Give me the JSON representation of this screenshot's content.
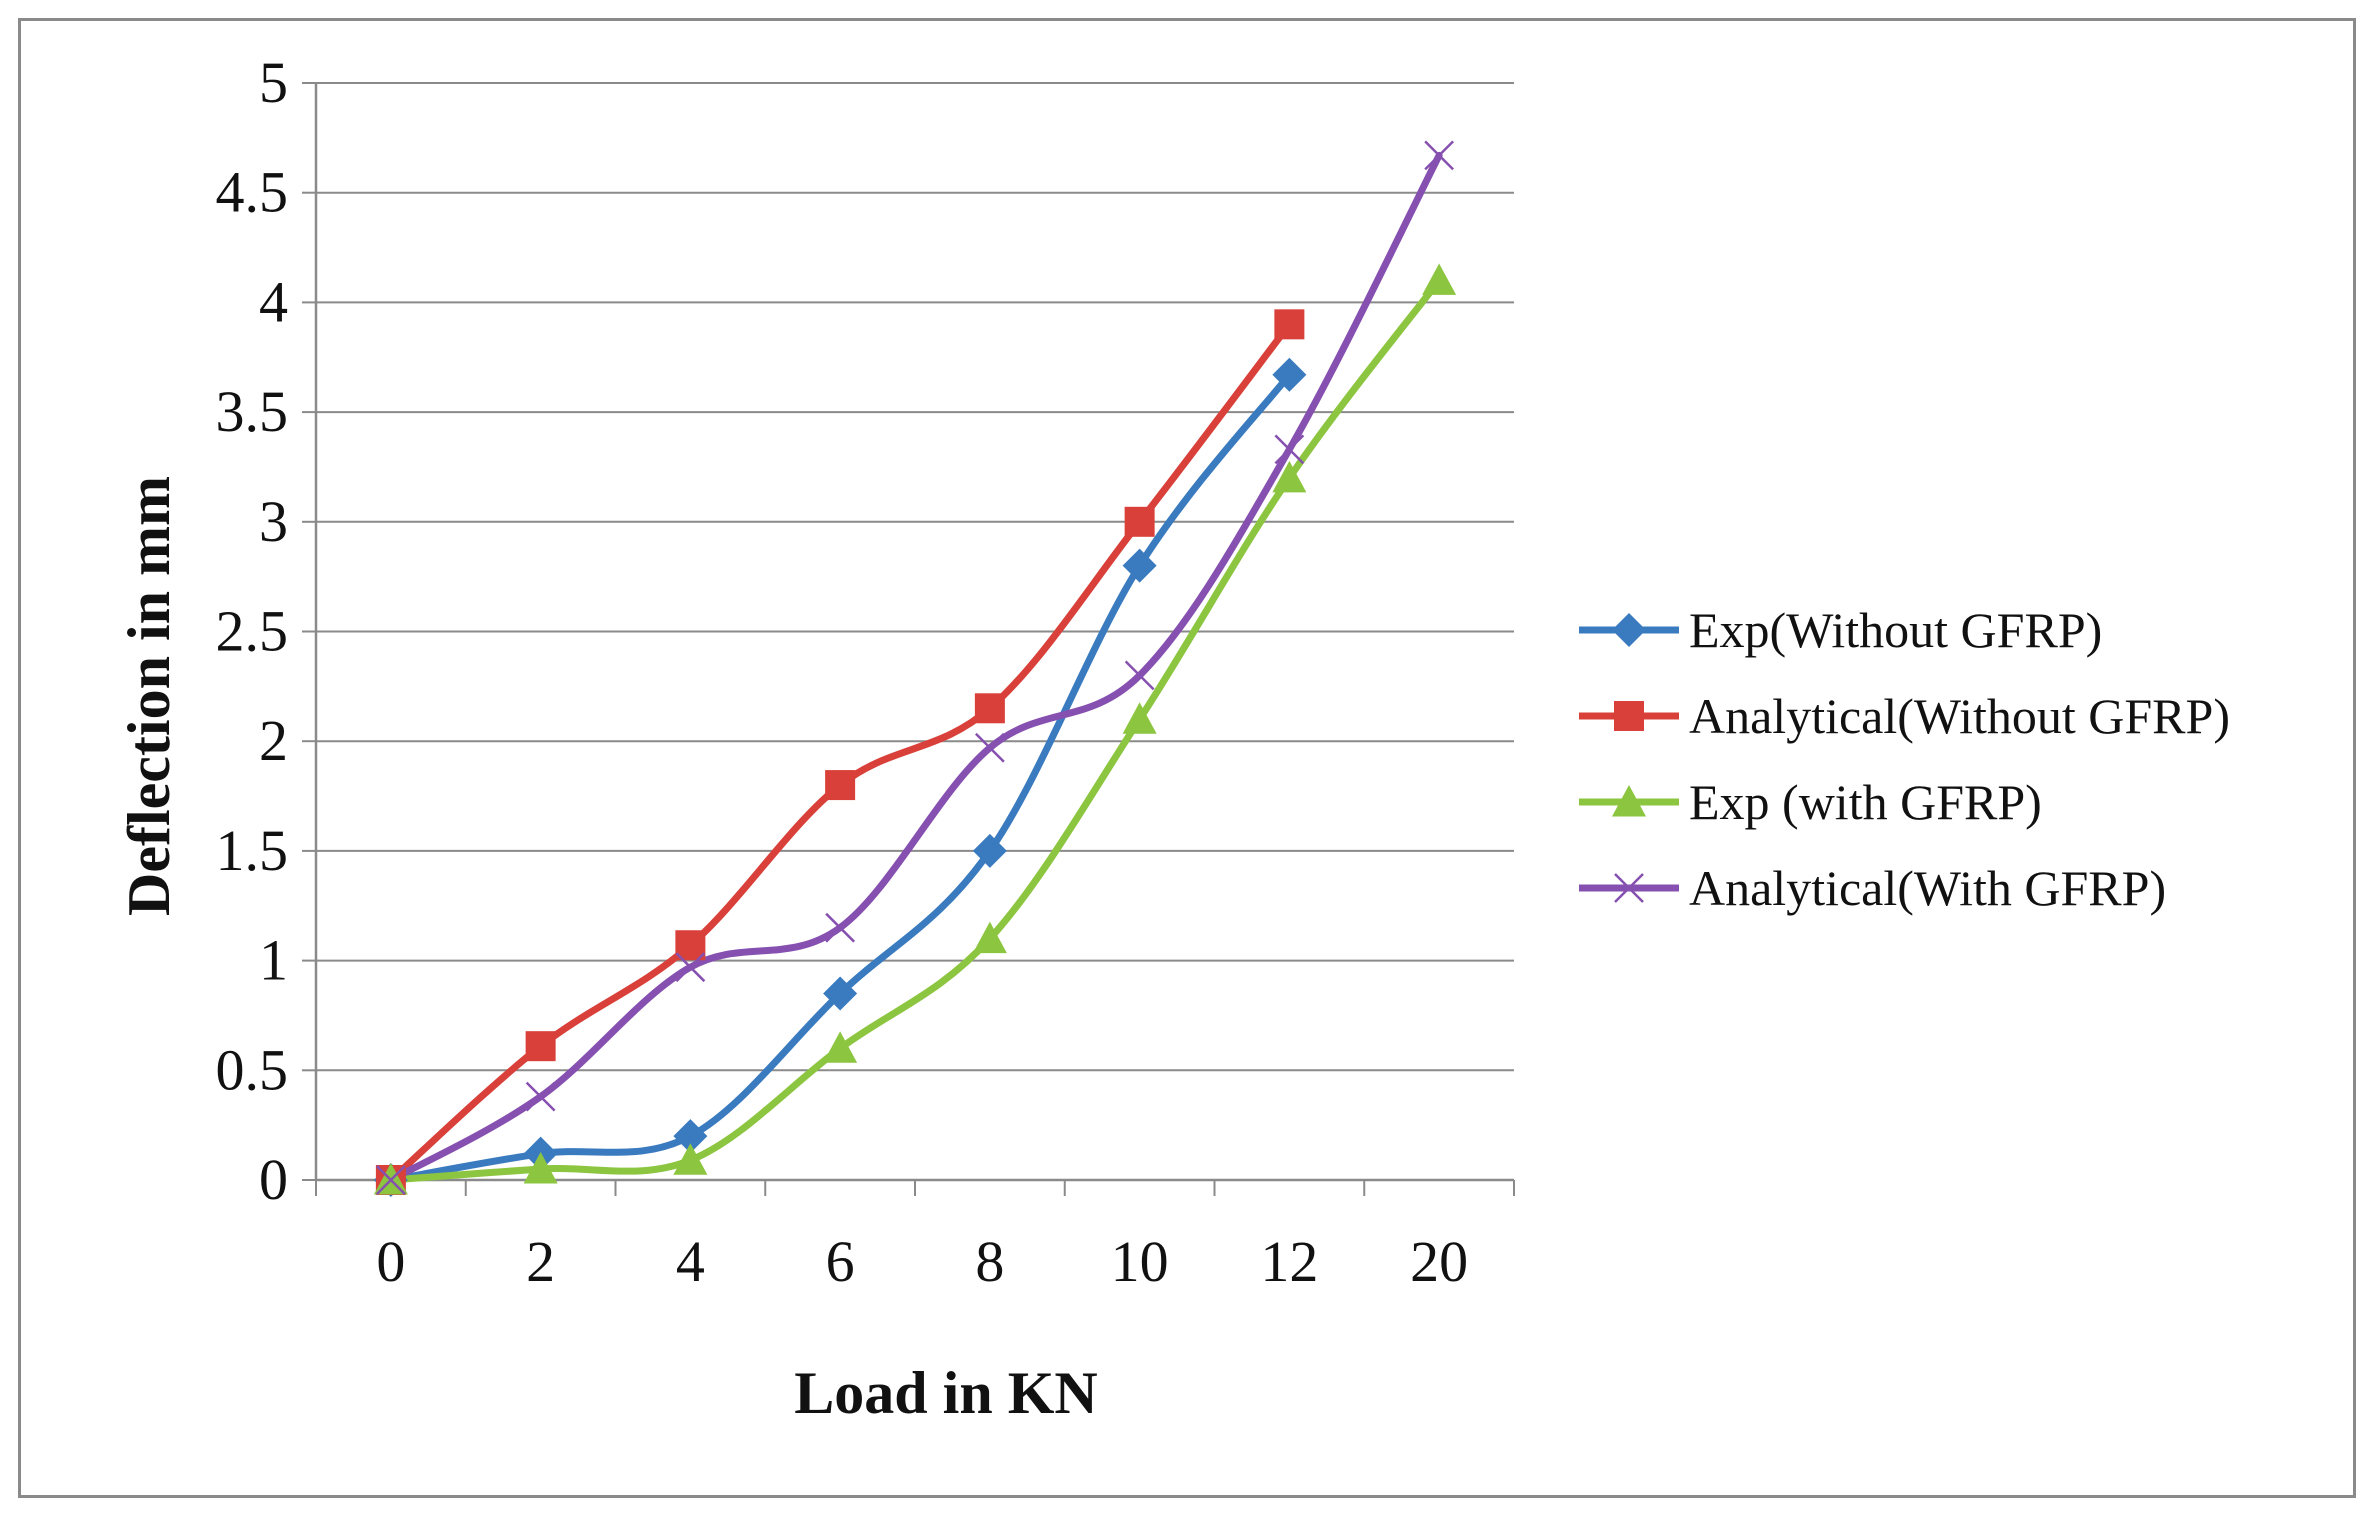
{
  "chart_data": {
    "type": "line",
    "title": "",
    "xlabel": "Load in KN",
    "ylabel": "Deflection in mm",
    "categories": [
      "0",
      "2",
      "4",
      "6",
      "8",
      "10",
      "12",
      "20"
    ],
    "ylim": [
      0,
      5
    ],
    "yticks": [
      "0",
      "0.5",
      "1",
      "1.5",
      "2",
      "2.5",
      "3",
      "3.5",
      "4",
      "4.5",
      "5"
    ],
    "grid": true,
    "legend_position": "right",
    "series": [
      {
        "name": "Exp(Without GFRP)",
        "color": "#3a7bbf",
        "marker": "diamond",
        "values": [
          0,
          0.12,
          0.2,
          0.85,
          1.5,
          2.8,
          3.67,
          null
        ]
      },
      {
        "name": "Analytical(Without GFRP)",
        "color": "#d9403a",
        "marker": "square",
        "values": [
          0,
          0.61,
          1.07,
          1.8,
          2.15,
          3.0,
          3.9,
          null
        ]
      },
      {
        "name": "Exp (with GFRP)",
        "color": "#8cc53f",
        "marker": "triangle",
        "values": [
          0,
          0.05,
          0.09,
          0.6,
          1.1,
          2.1,
          3.2,
          4.1
        ]
      },
      {
        "name": "Analytical(With GFRP)",
        "color": "#8650b0",
        "marker": "x",
        "values": [
          0,
          0.38,
          0.97,
          1.15,
          1.97,
          2.3,
          3.33,
          4.67
        ]
      }
    ]
  }
}
